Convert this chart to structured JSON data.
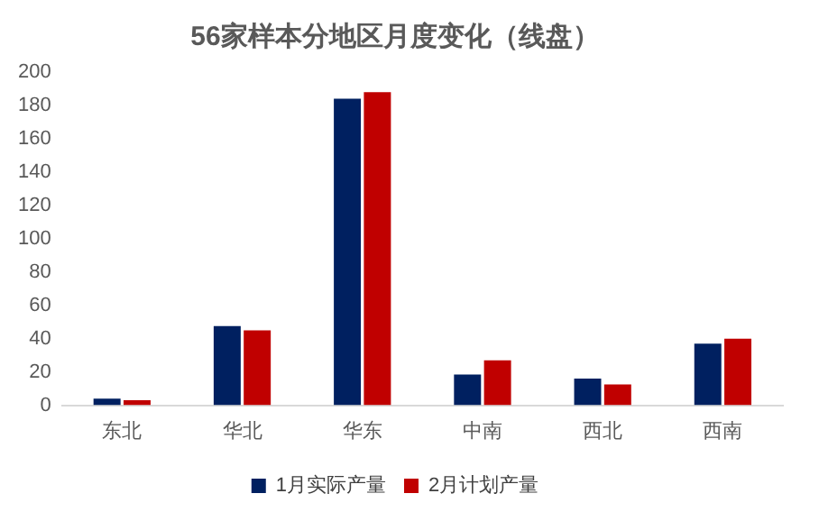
{
  "chart_data": {
    "type": "bar",
    "title": "56家样本分地区月度变化（线盘）",
    "categories": [
      "东北",
      "华北",
      "华东",
      "中南",
      "西北",
      "西南"
    ],
    "series": [
      {
        "name": "1月实际产量",
        "color": "#002060",
        "values": [
          4,
          47.5,
          184,
          18.5,
          16,
          37
        ]
      },
      {
        "name": "2月计划产量",
        "color": "#c00000",
        "values": [
          3,
          45,
          188,
          27,
          12.5,
          40
        ]
      }
    ],
    "ylim": [
      0,
      200
    ],
    "yticks": [
      0,
      20,
      40,
      60,
      80,
      100,
      120,
      140,
      160,
      180,
      200
    ],
    "grid": false,
    "legend": "bottom"
  }
}
